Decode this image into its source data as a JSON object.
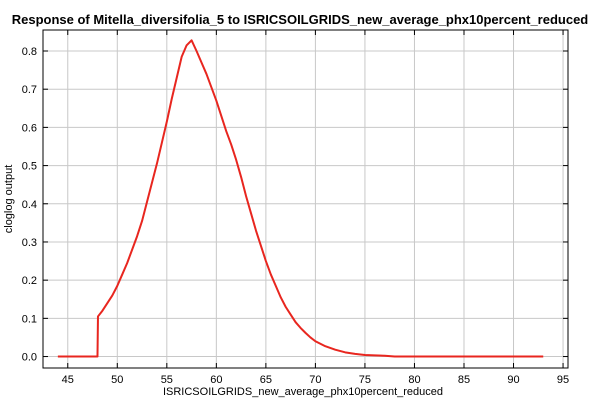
{
  "chart_data": {
    "type": "line",
    "title": "Response of Mitella_diversifolia_5 to ISRICSOILGRIDS_new_average_phx10percent_reduced",
    "xlabel": "ISRICSOILGRIDS_new_average_phx10percent_reduced",
    "ylabel": "cloglog output",
    "xlim": [
      42.5,
      95.5
    ],
    "ylim": [
      -0.03,
      0.855
    ],
    "xticks": [
      45,
      50,
      55,
      60,
      65,
      70,
      75,
      80,
      85,
      90,
      95
    ],
    "yticks": [
      0.0,
      0.1,
      0.2,
      0.3,
      0.4,
      0.5,
      0.6,
      0.7,
      0.8
    ],
    "ytick_labels": [
      "0.0",
      "0.1",
      "0.2",
      "0.3",
      "0.4",
      "0.5",
      "0.6",
      "0.7",
      "0.8"
    ],
    "grid": true,
    "series": [
      {
        "color": "#e8261f",
        "x": [
          44,
          48,
          48.05,
          48.5,
          49,
          49.5,
          50,
          50.5,
          51,
          51.5,
          52,
          52.5,
          53,
          53.5,
          54,
          54.5,
          55,
          55.5,
          56,
          56.5,
          57,
          57.5,
          58,
          58.5,
          59,
          59.5,
          60,
          60.5,
          61,
          61.5,
          62,
          62.5,
          63,
          63.5,
          64,
          64.5,
          65,
          65.5,
          66,
          66.5,
          67,
          67.5,
          68,
          68.5,
          69,
          69.5,
          70,
          71,
          72,
          73,
          74,
          75,
          76,
          77,
          78,
          80,
          85,
          90,
          93
        ],
        "y": [
          0.0,
          0.0,
          0.105,
          0.12,
          0.14,
          0.16,
          0.185,
          0.215,
          0.245,
          0.28,
          0.315,
          0.355,
          0.405,
          0.455,
          0.505,
          0.56,
          0.615,
          0.675,
          0.73,
          0.785,
          0.815,
          0.828,
          0.8,
          0.77,
          0.74,
          0.705,
          0.67,
          0.63,
          0.59,
          0.555,
          0.515,
          0.47,
          0.42,
          0.375,
          0.33,
          0.29,
          0.25,
          0.215,
          0.185,
          0.155,
          0.13,
          0.11,
          0.09,
          0.075,
          0.062,
          0.05,
          0.04,
          0.027,
          0.018,
          0.011,
          0.007,
          0.004,
          0.003,
          0.002,
          0.0,
          0.0,
          0.0,
          0.0,
          0.0
        ]
      }
    ]
  }
}
